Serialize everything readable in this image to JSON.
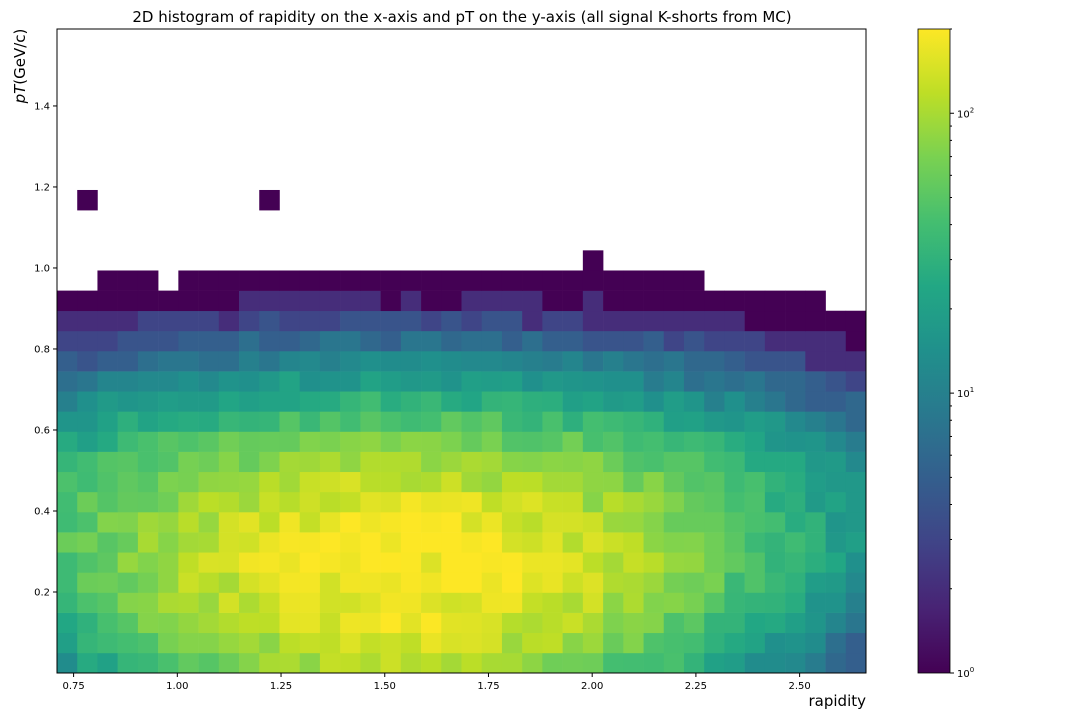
{
  "chart_data": {
    "type": "heatmap",
    "title": "2D histogram of rapidity on the x-axis and pT on the y-axis (all signal K-shorts from MC)",
    "xlabel": "rapidity",
    "ylabel": "pT(GeV/c)",
    "xlim": [
      0.71,
      2.66
    ],
    "ylim": [
      0.0,
      1.59
    ],
    "x_bins": {
      "start": 0.71,
      "width": 0.04875,
      "count": 40
    },
    "y_bins": {
      "start": 0.0,
      "width": 0.04969,
      "count": 32
    },
    "x_ticks": [
      0.75,
      1.0,
      1.25,
      1.5,
      1.75,
      2.0,
      2.25,
      2.5
    ],
    "x_tick_labels": [
      "0.75",
      "1.00",
      "1.25",
      "1.50",
      "1.75",
      "2.00",
      "2.25",
      "2.50"
    ],
    "y_ticks": [
      0.2,
      0.4,
      0.6,
      0.8,
      1.0,
      1.2,
      1.4
    ],
    "y_tick_labels": [
      "0.2",
      "0.4",
      "0.6",
      "0.8",
      "1.0",
      "1.2",
      "1.4"
    ],
    "colorscale": {
      "name": "viridis",
      "scale": "log",
      "range": [
        1,
        200
      ],
      "ticks": [
        1,
        10,
        100
      ],
      "tick_labels": [
        "10^0",
        "10^1",
        "10^2"
      ]
    },
    "peak": {
      "x": 1.55,
      "y": 0.25,
      "count": 200
    },
    "counts": {
      "description": "per-bin counts; row index = y-bin from bottom, col index = x-bin from left; 0 = empty",
      "rows": []
    }
  }
}
